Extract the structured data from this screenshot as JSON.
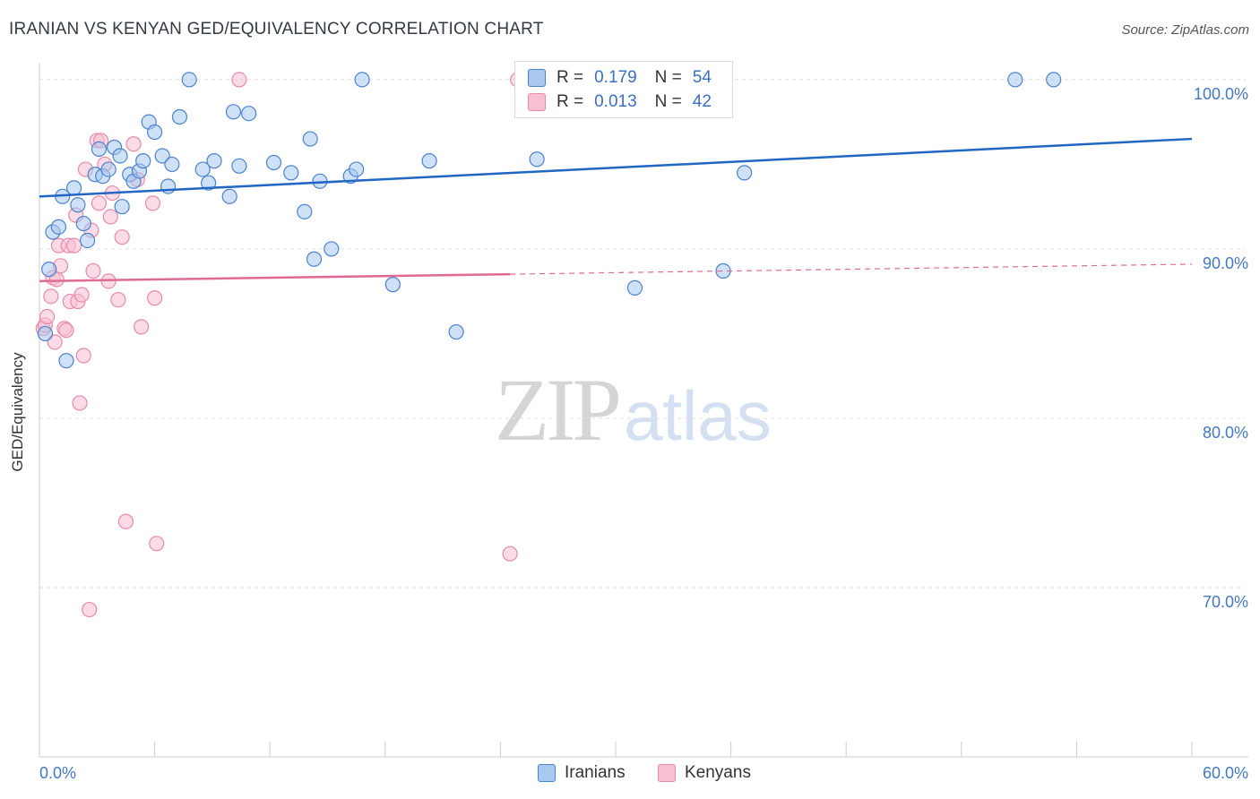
{
  "header": {
    "title": "IRANIAN VS KENYAN GED/EQUIVALENCY CORRELATION CHART",
    "source": "Source: ZipAtlas.com"
  },
  "watermark": {
    "zip": "ZIP",
    "atlas": "atlas"
  },
  "legend": {
    "r_label": "R =",
    "n_label": "N =",
    "iranians": {
      "r": "0.179",
      "n": "54"
    },
    "kenyans": {
      "r": "0.013",
      "n": "42"
    }
  },
  "colors": {
    "iranians_fill": "#a8c8ee",
    "iranians_stroke": "#4a82cf",
    "iranians_line": "#2266c4",
    "kenyans_fill": "#f8bfd2",
    "kenyans_stroke": "#e98aa8",
    "kenyans_line": "#e06a95",
    "axis_label": "#4478c4"
  },
  "chart_data": {
    "type": "scatter",
    "title": "IRANIAN VS KENYAN GED/EQUIVALENCY CORRELATION CHART",
    "xlabel": "",
    "ylabel": "GED/Equivalency",
    "xlim": [
      0,
      60
    ],
    "ylim": [
      60,
      101
    ],
    "x_tick_labels": [
      "0.0%",
      "60.0%"
    ],
    "y_ticks": [
      70,
      80,
      90,
      100
    ],
    "y_tick_labels": [
      "70.0%",
      "80.0%",
      "90.0%",
      "100.0%"
    ],
    "grid": true,
    "legend_position": "top-center",
    "series": [
      {
        "name": "Iranians",
        "r": 0.179,
        "n": 54,
        "trend": {
          "x0": 0,
          "y0": 93.1,
          "x1": 60,
          "y1": 96.5,
          "dashed_from": null
        },
        "points": [
          [
            0.3,
            85.0
          ],
          [
            0.5,
            88.8
          ],
          [
            0.7,
            91.0
          ],
          [
            1.0,
            91.3
          ],
          [
            1.2,
            93.1
          ],
          [
            1.4,
            83.4
          ],
          [
            1.8,
            93.6
          ],
          [
            2.0,
            92.6
          ],
          [
            2.3,
            91.5
          ],
          [
            2.5,
            90.5
          ],
          [
            2.9,
            94.4
          ],
          [
            3.1,
            95.9
          ],
          [
            3.3,
            94.3
          ],
          [
            3.6,
            94.7
          ],
          [
            3.9,
            96.0
          ],
          [
            4.2,
            95.5
          ],
          [
            4.3,
            92.5
          ],
          [
            4.7,
            94.4
          ],
          [
            4.9,
            94.0
          ],
          [
            5.2,
            94.6
          ],
          [
            5.4,
            95.2
          ],
          [
            5.7,
            97.5
          ],
          [
            6.0,
            96.9
          ],
          [
            6.4,
            95.5
          ],
          [
            6.7,
            93.7
          ],
          [
            6.9,
            95.0
          ],
          [
            7.3,
            97.8
          ],
          [
            7.8,
            100.0
          ],
          [
            8.5,
            94.7
          ],
          [
            8.8,
            93.9
          ],
          [
            9.1,
            95.2
          ],
          [
            9.9,
            93.1
          ],
          [
            10.1,
            98.1
          ],
          [
            10.4,
            94.9
          ],
          [
            10.9,
            98.0
          ],
          [
            12.2,
            95.1
          ],
          [
            13.1,
            94.5
          ],
          [
            13.8,
            92.2
          ],
          [
            14.1,
            96.5
          ],
          [
            14.3,
            89.4
          ],
          [
            14.6,
            94.0
          ],
          [
            15.2,
            90.0
          ],
          [
            16.2,
            94.3
          ],
          [
            16.5,
            94.7
          ],
          [
            16.8,
            100.0
          ],
          [
            18.4,
            87.9
          ],
          [
            20.3,
            95.2
          ],
          [
            21.7,
            85.1
          ],
          [
            25.9,
            95.3
          ],
          [
            31.0,
            87.7
          ],
          [
            35.6,
            88.7
          ],
          [
            36.7,
            94.5
          ],
          [
            50.8,
            100.0
          ],
          [
            52.8,
            100.0
          ]
        ]
      },
      {
        "name": "Kenyans",
        "r": 0.013,
        "n": 42,
        "trend": {
          "x0": 0,
          "y0": 88.1,
          "x1": 60,
          "y1": 89.1,
          "dashed_from": 24.5
        },
        "points": [
          [
            0.2,
            85.3
          ],
          [
            0.3,
            85.5
          ],
          [
            0.4,
            86.0
          ],
          [
            0.6,
            87.2
          ],
          [
            0.7,
            88.3
          ],
          [
            0.8,
            84.5
          ],
          [
            0.9,
            88.2
          ],
          [
            1.0,
            90.2
          ],
          [
            1.1,
            89.0
          ],
          [
            1.3,
            85.3
          ],
          [
            1.4,
            85.2
          ],
          [
            1.5,
            90.2
          ],
          [
            1.6,
            86.9
          ],
          [
            1.8,
            90.2
          ],
          [
            1.9,
            92.0
          ],
          [
            2.0,
            86.9
          ],
          [
            2.2,
            87.3
          ],
          [
            2.3,
            83.7
          ],
          [
            2.4,
            94.7
          ],
          [
            2.1,
            80.9
          ],
          [
            2.6,
            68.7
          ],
          [
            2.7,
            91.1
          ],
          [
            2.8,
            88.7
          ],
          [
            3.0,
            96.4
          ],
          [
            3.1,
            92.7
          ],
          [
            3.2,
            96.4
          ],
          [
            3.4,
            95.0
          ],
          [
            3.6,
            88.1
          ],
          [
            3.7,
            91.9
          ],
          [
            3.8,
            93.3
          ],
          [
            4.1,
            87.0
          ],
          [
            4.3,
            90.7
          ],
          [
            4.5,
            73.9
          ],
          [
            4.9,
            96.2
          ],
          [
            5.1,
            94.1
          ],
          [
            5.3,
            85.4
          ],
          [
            5.9,
            92.7
          ],
          [
            6.0,
            87.1
          ],
          [
            6.1,
            72.6
          ],
          [
            10.4,
            100.0
          ],
          [
            24.5,
            72.0
          ],
          [
            24.9,
            100.0
          ]
        ]
      }
    ]
  }
}
